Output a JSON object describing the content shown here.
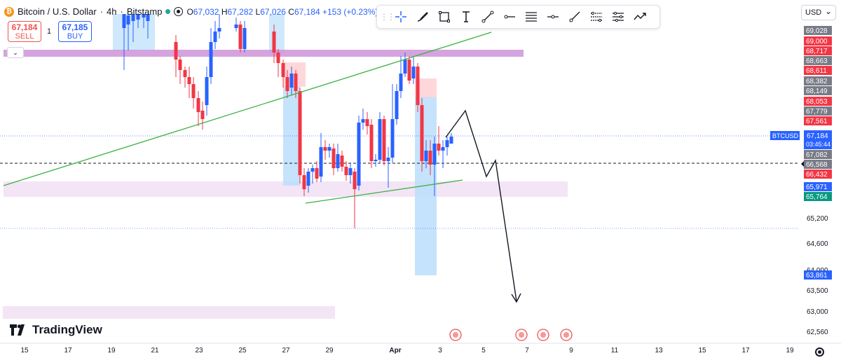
{
  "header": {
    "symbol": "Bitcoin / U.S. Dollar",
    "interval": "4h",
    "exchange": "Bitstamp",
    "open_label": "O",
    "open": "67,032",
    "high_label": "H",
    "high": "67,282",
    "low_label": "L",
    "low": "67,026",
    "close_label": "C",
    "close": "67,184",
    "change": "+153 (+0.23%)"
  },
  "trade": {
    "sell_price": "67,184",
    "sell_label": "SELL",
    "buy_price": "67,185",
    "buy_label": "BUY",
    "spread": "1"
  },
  "currency": "USD",
  "logo": "TradingView",
  "toolbar": {
    "tools": [
      "crosshair-icon",
      "brush-icon",
      "rectangle-icon",
      "text-icon",
      "trend-line-icon",
      "horizontal-ray-icon",
      "fib-retracement-icon",
      "horizontal-line-icon",
      "ray-icon",
      "parallel-channel-icon",
      "regression-trend-icon",
      "path-icon"
    ]
  },
  "colors": {
    "up": "#2962ff",
    "down": "#f23645",
    "trendline": "#3bb143",
    "zone_purple": "#ce93d8",
    "zone_light": "#f3e5f5",
    "marker_blue": "#2962ff"
  },
  "chart_data": {
    "type": "candlestick",
    "symbol": "BTCUSD",
    "price_axis": {
      "ticks": [
        "65,200",
        "64,600",
        "64,000",
        "63,500",
        "63,000",
        "62,560"
      ],
      "labels": [
        {
          "text": "69,028",
          "color": "#787b86"
        },
        {
          "text": "69,000",
          "color": "#f23645"
        },
        {
          "text": "68,717",
          "color": "#f23645"
        },
        {
          "text": "68,663",
          "color": "#787b86"
        },
        {
          "text": "68,611",
          "color": "#f23645"
        },
        {
          "text": "68,382",
          "color": "#787b86"
        },
        {
          "text": "68,149",
          "color": "#787b86"
        },
        {
          "text": "68,053",
          "color": "#f23645"
        },
        {
          "text": "67,779",
          "color": "#787b86"
        },
        {
          "text": "67,561",
          "color": "#f23645"
        },
        {
          "text": "67,082",
          "color": "#787b86"
        },
        {
          "text": "66,568",
          "color": "#787b86"
        },
        {
          "text": "66,432",
          "color": "#f23645"
        },
        {
          "text": "65,971",
          "color": "#2962ff"
        },
        {
          "text": "65,764",
          "color": "#089981"
        },
        {
          "text": "63,861",
          "color": "#2962ff"
        }
      ],
      "last_price": {
        "symbol": "BTCUSD",
        "price": "67,184",
        "countdown": "03:45:44"
      }
    },
    "time_axis": [
      "15",
      "17",
      "19",
      "21",
      "23",
      "25",
      "27",
      "29",
      "Apr",
      "3",
      "5",
      "7",
      "9",
      "11",
      "13",
      "15",
      "17",
      "19"
    ]
  }
}
